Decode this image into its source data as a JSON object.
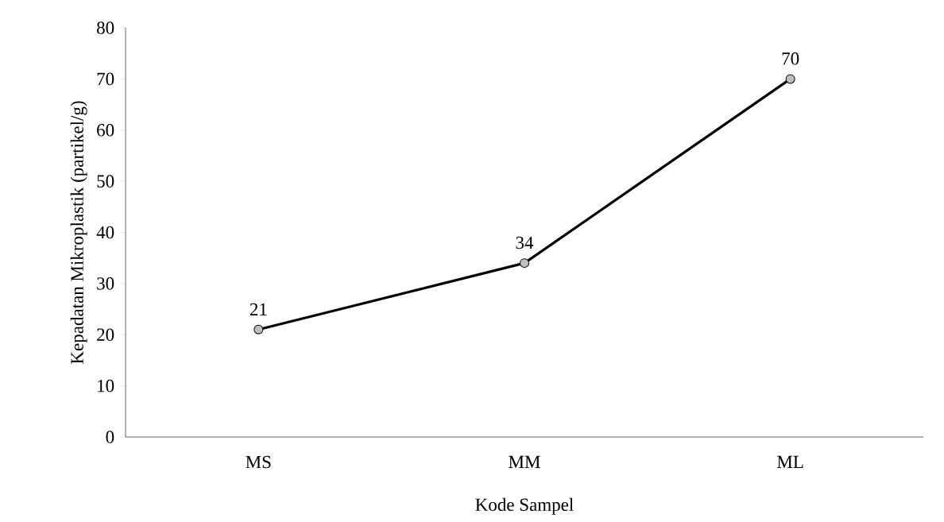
{
  "chart_data": {
    "type": "line",
    "xlabel": "Kode Sampel",
    "ylabel": "Kepadatan Mikroplastik (partikel/g)",
    "categories": [
      "MS",
      "MM",
      "ML"
    ],
    "series": [
      {
        "color": "#000000",
        "values": [
          21,
          34,
          70
        ]
      }
    ],
    "ylim": [
      0,
      80
    ],
    "yticks": [
      0,
      10,
      20,
      30,
      40,
      50,
      60,
      70,
      80
    ],
    "marker": "circle",
    "line_style": "solid",
    "data_labels": true
  }
}
